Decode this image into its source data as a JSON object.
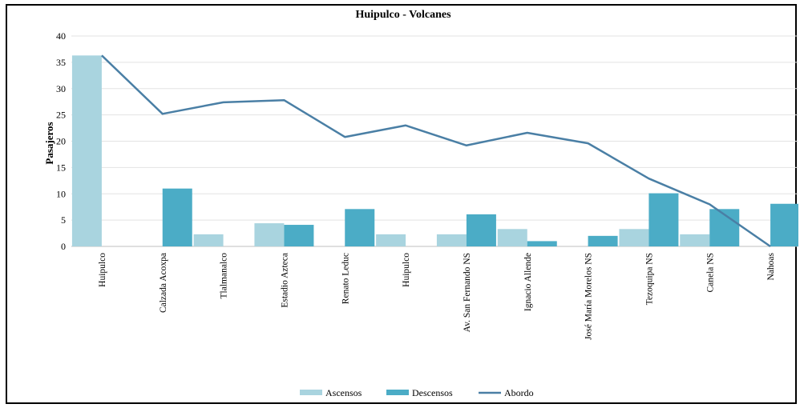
{
  "chart_data": {
    "type": "bar",
    "title": "Huipulco  - Volcanes",
    "ylabel": "Pasajeros",
    "xlabel": "",
    "ylim": [
      0,
      40
    ],
    "yticks": [
      0,
      5,
      10,
      15,
      20,
      25,
      30,
      35,
      40
    ],
    "grid": true,
    "legend_position": "bottom",
    "categories": [
      "Huipulco",
      "Calzada Acoxpa",
      "Tlalmanalco",
      "Estadio Azteca",
      "Renato Leduc",
      "Huipulco",
      "Av. San Fernando NS",
      "Ignacio  Allende",
      "José María Morelos NS",
      "Tezoquipa NS",
      "Canela NS",
      "Nahoas"
    ],
    "series": [
      {
        "name": "Ascensos",
        "type": "bar",
        "color": "#a9d4df",
        "values": [
          36.3,
          0,
          2.3,
          4.4,
          0,
          2.3,
          2.3,
          3.3,
          0,
          3.3,
          2.3,
          0
        ]
      },
      {
        "name": "Descensos",
        "type": "bar",
        "color": "#4bacc6",
        "values": [
          0,
          11,
          0,
          4.1,
          7.1,
          0,
          6.1,
          1,
          2,
          10.1,
          7.1,
          8.1
        ]
      },
      {
        "name": "Abordo",
        "type": "line",
        "color": "#4a7fa5",
        "values": [
          36.3,
          25.2,
          27.4,
          27.8,
          20.8,
          23,
          19.2,
          21.6,
          19.6,
          12.9,
          8,
          0
        ]
      }
    ]
  }
}
